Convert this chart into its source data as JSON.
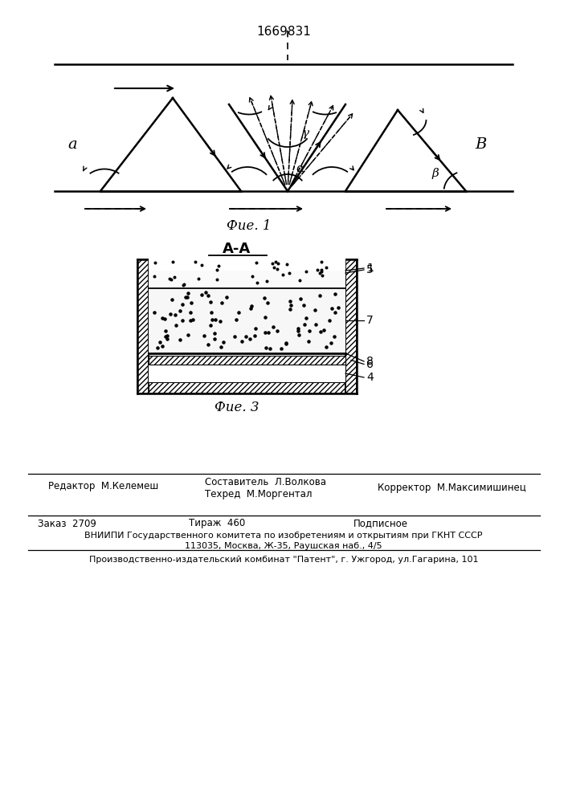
{
  "title": "1669831",
  "fig1_label": "Фие. 1",
  "fig3_label": "Фие. 3",
  "aa_label": "A-A",
  "bg_color": "#ffffff",
  "line_color": "#000000",
  "label_a": "a",
  "label_B": "B",
  "label_gamma": "γ",
  "label_alpha": "α",
  "label_beta": "β",
  "editor_line": "Редактор  М.Келемеш",
  "composer_line": "Составитель  Л.Волкова",
  "techred_line": "Техред  М.Моргентал",
  "corrector_line": "Корректор  М.Максимишинец",
  "order_line": "Заказ  2709",
  "tirazh_line": "Тираж  460",
  "podpisnoe_line": "Подписное",
  "vniipii_line": "ВНИИПИ Государственного комитета по изобретениям и открытиям при ГКНТ СССР",
  "moscow_line": "113035, Москва, Ж-35, Раушская наб., 4/5",
  "production_line": "Производственно-издательский комбинат \"Патент\", г. Ужгород, ул.Гагарина, 101"
}
